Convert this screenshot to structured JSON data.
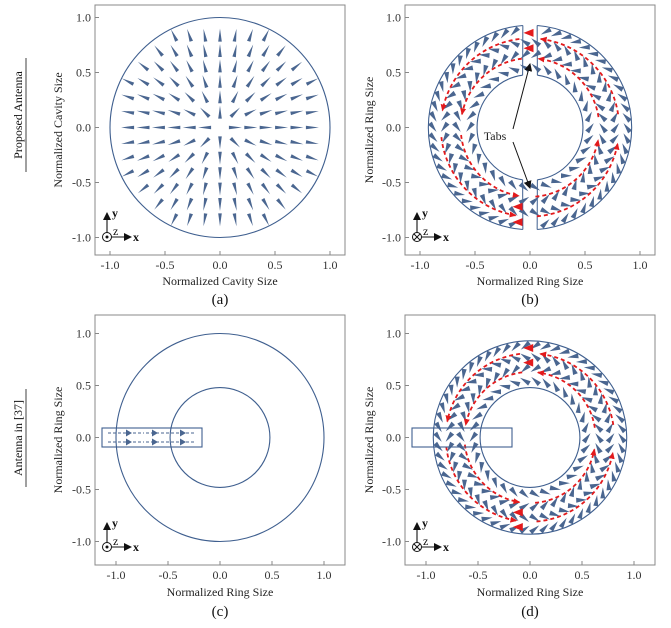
{
  "row_labels": [
    "Proposed Antenna",
    "Antenna in [37]"
  ],
  "ticks": [
    "-1.0",
    "-0.5",
    "0.0",
    "0.5",
    "1.0"
  ],
  "tick_values": [
    -1,
    -0.5,
    0,
    0.5,
    1
  ],
  "colors": {
    "vector": "#4a6690",
    "outline": "#3f5f8f",
    "current": "#e31a1c",
    "frame": "#888888"
  },
  "panels": [
    {
      "id": "a",
      "caption": "(a)",
      "xlabel": "Normalized Cavity Size",
      "ylabel": "Normalized Cavity Size",
      "triad": {
        "y": "y",
        "z": "z",
        "x": "x",
        "z_symbol": "dot"
      }
    },
    {
      "id": "b",
      "caption": "(b)",
      "xlabel": "Normalized Ring Size",
      "ylabel": "Normalized Ring Size",
      "annotation": "Tabs",
      "triad": {
        "y": "y",
        "z": "z",
        "x": "x",
        "z_symbol": "cross"
      }
    },
    {
      "id": "c",
      "caption": "(c)",
      "xlabel": "Normalized Ring Size",
      "ylabel": "Normalized Ring Size",
      "triad": {
        "y": "y",
        "z": "z",
        "x": "x",
        "z_symbol": "dot"
      }
    },
    {
      "id": "d",
      "caption": "(d)",
      "xlabel": "Normalized Ring Size",
      "ylabel": "Normalized Ring Size",
      "triad": {
        "y": "y",
        "z": "z",
        "x": "x",
        "z_symbol": "cross"
      }
    }
  ]
}
